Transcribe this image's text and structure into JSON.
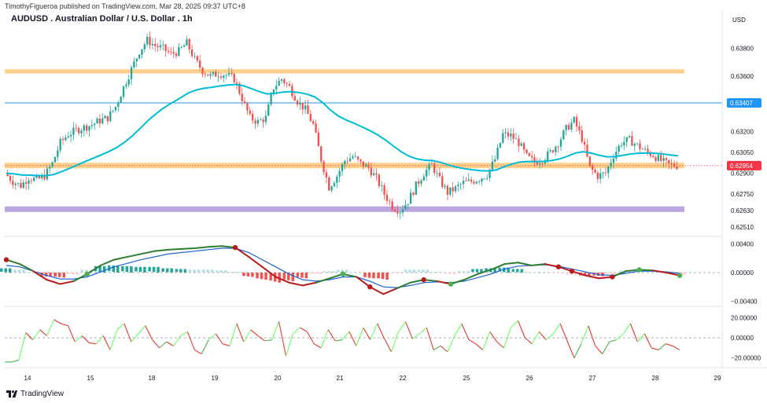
{
  "header": {
    "publisher_line": "TimothyFigueroa published on TradingView.com, Mar 28, 2025 09:37 UTC+8",
    "title": "AUDUSD . Australian Dollar / U.S. Dollar . 1h",
    "currency": "USD"
  },
  "brand": {
    "name": "TradingView",
    "icon": "tradingview-logo-icon"
  },
  "colors": {
    "up": "#26a69a",
    "down": "#ef5350",
    "ema": "#00bcd4",
    "zone_orange": "#ffcc80",
    "zone_purple": "#b39ddb",
    "line_blue": "#2196f3",
    "price_label": "#f23645",
    "line_label": "#2196f3",
    "macd_fast": "#2e7d32",
    "macd_fast_down": "#b71c1c",
    "macd_slow": "#1e5fd6",
    "osc_up": "#4caf50",
    "osc_up_light": "#66ff66",
    "osc_down": "#e53935"
  },
  "chart_data": [
    {
      "type": "candlestick",
      "pane": "price",
      "y_ticks": [
        "0.63800",
        "0.63600",
        "0.63200",
        "0.63050",
        "0.62900",
        "0.62750",
        "0.62630",
        "0.62510"
      ],
      "x_ticks": [
        "14",
        "15",
        "18",
        "19",
        "20",
        "21",
        "22",
        "25",
        "26",
        "27",
        "28",
        "29"
      ],
      "ylim": [
        0.6246,
        0.6398
      ],
      "close_path": [
        0.629,
        0.6284,
        0.6281,
        0.6287,
        0.6285,
        0.6288,
        0.6297,
        0.6312,
        0.6318,
        0.6321,
        0.6323,
        0.6325,
        0.6328,
        0.633,
        0.6338,
        0.6352,
        0.6365,
        0.6378,
        0.6386,
        0.6382,
        0.638,
        0.6376,
        0.6378,
        0.6384,
        0.6372,
        0.6364,
        0.636,
        0.6362,
        0.6361,
        0.6358,
        0.6344,
        0.633,
        0.6327,
        0.633,
        0.6352,
        0.6358,
        0.6352,
        0.6342,
        0.6336,
        0.6325,
        0.63,
        0.628,
        0.6288,
        0.6299,
        0.6302,
        0.6297,
        0.6294,
        0.6286,
        0.6275,
        0.6266,
        0.6263,
        0.627,
        0.6281,
        0.629,
        0.6296,
        0.6285,
        0.6276,
        0.6279,
        0.6283,
        0.6284,
        0.6286,
        0.6289,
        0.63,
        0.6318,
        0.6317,
        0.6312,
        0.6302,
        0.6298,
        0.63,
        0.6305,
        0.6312,
        0.6322,
        0.6328,
        0.6315,
        0.6294,
        0.6288,
        0.629,
        0.6303,
        0.6312,
        0.6314,
        0.631,
        0.6306,
        0.6303,
        0.6299,
        0.6296,
        0.62954
      ],
      "ema": {
        "label": "",
        "start": 0.6292,
        "end": 0.6305
      },
      "zones": [
        {
          "name": "resistance-zone",
          "from": 0.6365,
          "to": 0.6362,
          "color": "#ffcc80"
        },
        {
          "name": "support-zone",
          "from": 0.62975,
          "to": 0.62935,
          "color": "#ffcc80"
        },
        {
          "name": "demand-zone",
          "from": 0.6266,
          "to": 0.6262,
          "color": "#b39ddb"
        }
      ],
      "horizontal_line": {
        "value": 0.63407,
        "label": "0.63407",
        "color": "#2196f3"
      },
      "last_price": {
        "value": 0.62954,
        "label": "0.62954",
        "color": "#f23645"
      }
    },
    {
      "type": "line",
      "pane": "macd",
      "y_ticks": [
        "0.00400",
        "0.00000",
        "−0.00400"
      ],
      "ylim": [
        -0.0045,
        0.0045
      ],
      "series": [
        {
          "name": "",
          "values": [
            0.0018,
            0.0012,
            0.0002,
            -0.001,
            -0.0016,
            -0.0012,
            -0.0002,
            0.001,
            0.0018,
            0.0022,
            0.0026,
            0.003,
            0.0032,
            0.0033,
            0.0034,
            0.0036,
            0.0037,
            0.0035,
            0.0022,
            0.0008,
            -0.0006,
            -0.0014,
            -0.0018,
            -0.0014,
            -0.0008,
            -0.0002,
            -0.0006,
            -0.002,
            -0.003,
            -0.0022,
            -0.0014,
            -0.001,
            -0.0012,
            -0.0016,
            -0.001,
            -0.0002,
            0.0004,
            0.0012,
            0.0014,
            0.001,
            0.0012,
            0.0008,
            0.0002,
            -0.0004,
            -0.0008,
            -0.0006,
            0.0002,
            0.0004,
            0.0003,
            0.0,
            -0.0004
          ]
        },
        {
          "name": "",
          "values": [
            0.001,
            0.0008,
            0.0002,
            -0.0004,
            -0.0009,
            -0.0009,
            -0.0006,
            0.0001,
            0.0008,
            0.0013,
            0.0018,
            0.0022,
            0.0026,
            0.0028,
            0.003,
            0.0032,
            0.0034,
            0.0034,
            0.0028,
            0.0018,
            0.0008,
            -0.0002,
            -0.001,
            -0.0012,
            -0.001,
            -0.0006,
            -0.0006,
            -0.0012,
            -0.002,
            -0.0021,
            -0.0018,
            -0.0014,
            -0.0013,
            -0.0014,
            -0.0012,
            -0.0007,
            -0.0002,
            0.0005,
            0.0009,
            0.001,
            0.0011,
            0.0009,
            0.0005,
            0.0001,
            -0.0003,
            -0.0004,
            -0.0001,
            0.0002,
            0.0002,
            0.0001,
            -0.0001
          ]
        }
      ],
      "histogram": [
        0.0006,
        0.0004,
        0.0,
        -0.0006,
        -0.0007,
        -0.0003,
        0.0004,
        0.0009,
        0.001,
        0.0009,
        0.0008,
        0.0008,
        0.0006,
        0.0005,
        0.0004,
        0.0004,
        0.0003,
        0.0001,
        -0.0006,
        -0.001,
        -0.0014,
        -0.0012,
        -0.0008,
        -0.0002,
        0.0002,
        0.0004,
        0.0,
        -0.0008,
        -0.001,
        -0.0001,
        0.0004,
        0.0004,
        0.0001,
        -0.0002,
        0.0002,
        0.0005,
        0.0006,
        0.0007,
        0.0005,
        0.0,
        0.0001,
        -0.0001,
        -0.0003,
        -0.0005,
        -0.0005,
        -0.0002,
        0.0003,
        0.0002,
        0.0001,
        -0.0001,
        -0.0003
      ],
      "cross_markers": [
        {
          "index": 0,
          "kind": "bear"
        },
        {
          "index": 6,
          "kind": "bull"
        },
        {
          "index": 17,
          "kind": "bear"
        },
        {
          "index": 25,
          "kind": "bull"
        },
        {
          "index": 27,
          "kind": "bear"
        },
        {
          "index": 31,
          "kind": "bear"
        },
        {
          "index": 33,
          "kind": "bull"
        },
        {
          "index": 41,
          "kind": "bear"
        },
        {
          "index": 42,
          "kind": "bear"
        },
        {
          "index": 45,
          "kind": "bear"
        },
        {
          "index": 47,
          "kind": "bull"
        },
        {
          "index": 50,
          "kind": "bull"
        }
      ]
    },
    {
      "type": "line",
      "pane": "oscillator",
      "y_ticks": [
        "20.00000",
        "0.00000",
        "−20.00000"
      ],
      "ylim": [
        -28,
        28
      ],
      "values": [
        -24,
        -24,
        -22,
        5,
        -2,
        8,
        2,
        18,
        14,
        12,
        -4,
        2,
        -5,
        -6,
        2,
        -12,
        8,
        14,
        -4,
        4,
        12,
        -2,
        -10,
        -4,
        -8,
        2,
        6,
        -12,
        -16,
        -2,
        4,
        -6,
        -8,
        14,
        -4,
        8,
        2,
        -3,
        -2,
        16,
        -18,
        4,
        10,
        6,
        -6,
        -10,
        8,
        -3,
        -2,
        6,
        -8,
        10,
        -2,
        14,
        -1,
        -14,
        6,
        16,
        -1,
        4,
        10,
        -12,
        -8,
        -14,
        2,
        14,
        -2,
        -6,
        -12,
        6,
        -4,
        -10,
        10,
        17,
        0,
        -6,
        6,
        -2,
        4,
        14,
        -3,
        -20,
        -6,
        12,
        -8,
        -16,
        -4,
        -2,
        4,
        14,
        -4,
        4,
        -10,
        -12,
        -6,
        -8,
        -12
      ]
    }
  ]
}
